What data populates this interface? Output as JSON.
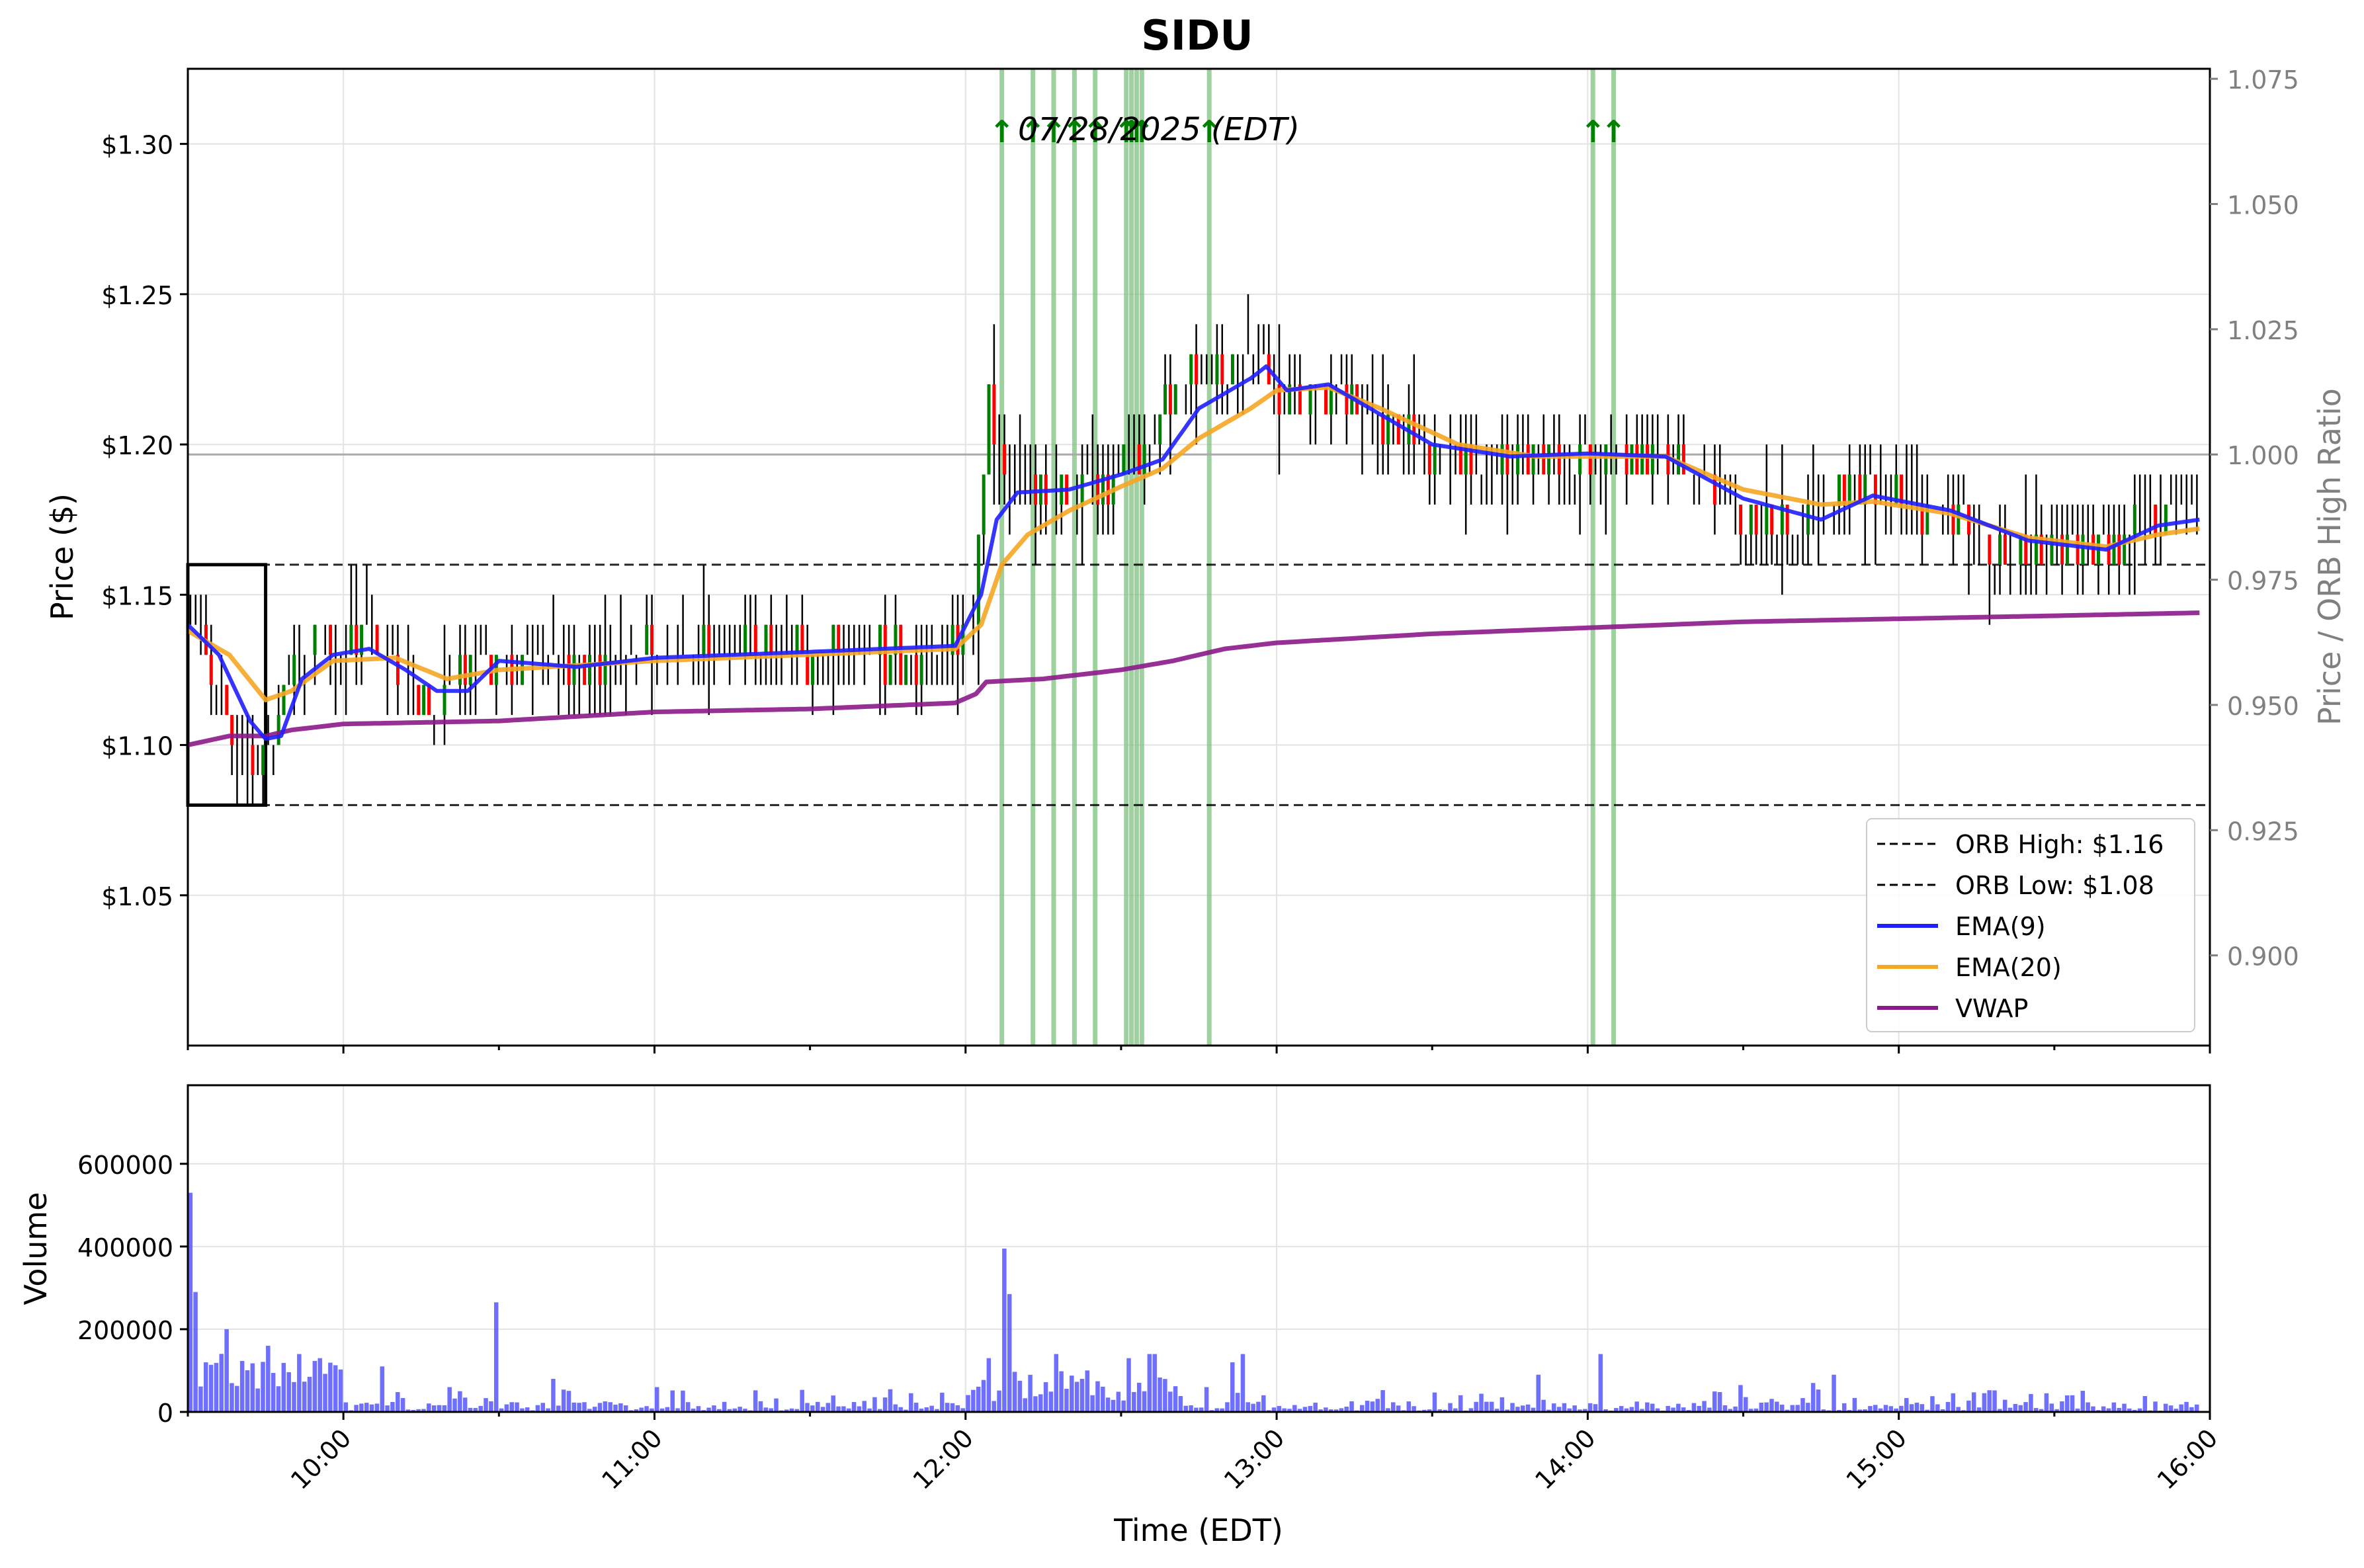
{
  "chart_data": [
    {
      "type": "candlestick",
      "title": "SIDU",
      "annotation": "07/28/2025 (EDT)",
      "ylabel": "Price ($)",
      "y2label": "Price / ORB High Ratio",
      "ylim": [
        1.0,
        1.325
      ],
      "y2lim": [
        0.882,
        1.077
      ],
      "x_range": [
        "09:30",
        "16:00"
      ],
      "x_ticks": [
        "10:00",
        "11:00",
        "12:00",
        "13:00",
        "14:00",
        "15:00",
        "16:00"
      ],
      "y_ticks": [
        {
          "value": 1.05,
          "label": "$1.05"
        },
        {
          "value": 1.1,
          "label": "$1.10"
        },
        {
          "value": 1.15,
          "label": "$1.15"
        },
        {
          "value": 1.2,
          "label": "$1.20"
        },
        {
          "value": 1.25,
          "label": "$1.25"
        },
        {
          "value": 1.3,
          "label": "$1.30"
        }
      ],
      "y2_ticks": [
        {
          "value": 0.9,
          "label": "0.900"
        },
        {
          "value": 0.925,
          "label": "0.925"
        },
        {
          "value": 0.95,
          "label": "0.950"
        },
        {
          "value": 0.975,
          "label": "0.975"
        },
        {
          "value": 1.0,
          "label": "1.000"
        },
        {
          "value": 1.025,
          "label": "1.025"
        },
        {
          "value": 1.05,
          "label": "1.050"
        },
        {
          "value": 1.075,
          "label": "1.075"
        }
      ],
      "grid": true,
      "legend": {
        "placement": "lower right",
        "entries": [
          {
            "label": "ORB High: $1.16",
            "style": "dashed",
            "color": "#000000"
          },
          {
            "label": "ORB Low: $1.08",
            "style": "dashed",
            "color": "#000000"
          },
          {
            "label": "EMA(9)",
            "style": "solid",
            "color": "#1f1fff"
          },
          {
            "label": "EMA(20)",
            "style": "solid",
            "color": "#f5a623"
          },
          {
            "label": "VWAP",
            "style": "solid",
            "color": "#8b1a89"
          }
        ]
      },
      "orb": {
        "high": 1.16,
        "low": 1.08,
        "start": "09:30",
        "end": "09:45"
      },
      "ratio_reference": 1.0,
      "signal_times": [
        "12:07",
        "12:13",
        "12:17",
        "12:21",
        "12:25",
        "12:31",
        "12:32",
        "12:33",
        "12:34",
        "12:47",
        "14:01",
        "14:05"
      ],
      "signal_marker": "↑",
      "colors": {
        "up": "#008000",
        "down": "#ff0000",
        "wick": "#000000",
        "signal": "#7cc27c"
      },
      "price_keyframes": [
        [
          "09:30",
          1.14
        ],
        [
          "09:33",
          1.135
        ],
        [
          "09:38",
          1.1
        ],
        [
          "09:42",
          1.095
        ],
        [
          "09:46",
          1.105
        ],
        [
          "09:50",
          1.13
        ],
        [
          "09:55",
          1.135
        ],
        [
          "10:00",
          1.13
        ],
        [
          "10:06",
          1.135
        ],
        [
          "10:12",
          1.118
        ],
        [
          "10:18",
          1.115
        ],
        [
          "10:22",
          1.125
        ],
        [
          "10:27",
          1.13
        ],
        [
          "10:35",
          1.125
        ],
        [
          "10:45",
          1.128
        ],
        [
          "11:00",
          1.13
        ],
        [
          "11:15",
          1.133
        ],
        [
          "11:30",
          1.13
        ],
        [
          "11:55",
          1.13
        ],
        [
          "12:01",
          1.145
        ],
        [
          "12:04",
          1.215
        ],
        [
          "12:08",
          1.185
        ],
        [
          "12:15",
          1.185
        ],
        [
          "12:25",
          1.185
        ],
        [
          "12:35",
          1.2
        ],
        [
          "12:40",
          1.22
        ],
        [
          "12:50",
          1.225
        ],
        [
          "12:55",
          1.23
        ],
        [
          "13:00",
          1.215
        ],
        [
          "13:10",
          1.22
        ],
        [
          "13:20",
          1.205
        ],
        [
          "13:30",
          1.195
        ],
        [
          "13:45",
          1.195
        ],
        [
          "14:00",
          1.195
        ],
        [
          "14:15",
          1.195
        ],
        [
          "14:25",
          1.18
        ],
        [
          "14:40",
          1.175
        ],
        [
          "14:50",
          1.185
        ],
        [
          "15:00",
          1.18
        ],
        [
          "15:10",
          1.175
        ],
        [
          "15:20",
          1.165
        ],
        [
          "15:35",
          1.165
        ],
        [
          "15:42",
          1.165
        ],
        [
          "15:47",
          1.175
        ],
        [
          "15:55",
          1.175
        ]
      ],
      "ema9_keyframes": [
        [
          "09:30",
          1.14
        ],
        [
          "09:36",
          1.13
        ],
        [
          "09:42",
          1.108
        ],
        [
          "09:45",
          1.102
        ],
        [
          "09:48",
          1.103
        ],
        [
          "09:52",
          1.122
        ],
        [
          "09:58",
          1.13
        ],
        [
          "10:05",
          1.132
        ],
        [
          "10:12",
          1.125
        ],
        [
          "10:18",
          1.118
        ],
        [
          "10:24",
          1.118
        ],
        [
          "10:30",
          1.128
        ],
        [
          "10:45",
          1.126
        ],
        [
          "11:00",
          1.129
        ],
        [
          "11:30",
          1.131
        ],
        [
          "11:58",
          1.133
        ],
        [
          "12:03",
          1.15
        ],
        [
          "12:06",
          1.175
        ],
        [
          "12:10",
          1.184
        ],
        [
          "12:20",
          1.185
        ],
        [
          "12:30",
          1.19
        ],
        [
          "12:38",
          1.195
        ],
        [
          "12:45",
          1.212
        ],
        [
          "12:55",
          1.222
        ],
        [
          "12:58",
          1.226
        ],
        [
          "13:02",
          1.218
        ],
        [
          "13:10",
          1.22
        ],
        [
          "13:20",
          1.21
        ],
        [
          "13:30",
          1.2
        ],
        [
          "13:45",
          1.196
        ],
        [
          "14:00",
          1.197
        ],
        [
          "14:15",
          1.196
        ],
        [
          "14:30",
          1.182
        ],
        [
          "14:45",
          1.175
        ],
        [
          "14:55",
          1.183
        ],
        [
          "15:10",
          1.178
        ],
        [
          "15:25",
          1.168
        ],
        [
          "15:40",
          1.165
        ],
        [
          "15:50",
          1.173
        ],
        [
          "15:58",
          1.175
        ]
      ],
      "ema20_keyframes": [
        [
          "09:30",
          1.138
        ],
        [
          "09:38",
          1.13
        ],
        [
          "09:45",
          1.115
        ],
        [
          "09:50",
          1.118
        ],
        [
          "09:58",
          1.128
        ],
        [
          "10:10",
          1.129
        ],
        [
          "10:20",
          1.122
        ],
        [
          "10:30",
          1.125
        ],
        [
          "11:00",
          1.128
        ],
        [
          "11:58",
          1.132
        ],
        [
          "12:03",
          1.14
        ],
        [
          "12:07",
          1.16
        ],
        [
          "12:12",
          1.17
        ],
        [
          "12:20",
          1.178
        ],
        [
          "12:30",
          1.186
        ],
        [
          "12:38",
          1.192
        ],
        [
          "12:45",
          1.202
        ],
        [
          "12:55",
          1.212
        ],
        [
          "13:00",
          1.218
        ],
        [
          "13:10",
          1.219
        ],
        [
          "13:20",
          1.212
        ],
        [
          "13:35",
          1.2
        ],
        [
          "13:50",
          1.196
        ],
        [
          "14:00",
          1.196
        ],
        [
          "14:15",
          1.196
        ],
        [
          "14:30",
          1.185
        ],
        [
          "14:45",
          1.18
        ],
        [
          "14:55",
          1.181
        ],
        [
          "15:10",
          1.177
        ],
        [
          "15:25",
          1.169
        ],
        [
          "15:40",
          1.166
        ],
        [
          "15:50",
          1.17
        ],
        [
          "15:58",
          1.172
        ]
      ],
      "vwap_keyframes": [
        [
          "09:30",
          1.1
        ],
        [
          "09:38",
          1.103
        ],
        [
          "09:45",
          1.103
        ],
        [
          "09:50",
          1.105
        ],
        [
          "10:00",
          1.107
        ],
        [
          "10:30",
          1.108
        ],
        [
          "11:00",
          1.111
        ],
        [
          "11:30",
          1.112
        ],
        [
          "11:58",
          1.114
        ],
        [
          "12:02",
          1.117
        ],
        [
          "12:04",
          1.121
        ],
        [
          "12:15",
          1.122
        ],
        [
          "12:30",
          1.125
        ],
        [
          "12:40",
          1.128
        ],
        [
          "12:50",
          1.132
        ],
        [
          "13:00",
          1.134
        ],
        [
          "13:30",
          1.137
        ],
        [
          "14:00",
          1.139
        ],
        [
          "14:30",
          1.141
        ],
        [
          "15:00",
          1.142
        ],
        [
          "15:30",
          1.143
        ],
        [
          "15:58",
          1.144
        ]
      ]
    },
    {
      "type": "bar",
      "ylabel": "Volume",
      "xlabel": "Time (EDT)",
      "ylim": [
        0,
        790000
      ],
      "y_ticks": [
        {
          "value": 0,
          "label": "0"
        },
        {
          "value": 200000,
          "label": "200000"
        },
        {
          "value": 400000,
          "label": "400000"
        },
        {
          "value": 600000,
          "label": "600000"
        }
      ],
      "x_ticks": [
        "10:00",
        "11:00",
        "12:00",
        "13:00",
        "14:00",
        "15:00",
        "16:00"
      ],
      "bar_color": "#5555ff",
      "grid": true,
      "volume_spikes": [
        [
          "09:30",
          530000
        ],
        [
          "09:31",
          290000
        ],
        [
          "09:37",
          200000
        ],
        [
          "09:45",
          160000
        ],
        [
          "09:51",
          140000
        ],
        [
          "09:55",
          130000
        ],
        [
          "10:07",
          110000
        ],
        [
          "10:20",
          60000
        ],
        [
          "10:29",
          265000
        ],
        [
          "10:40",
          80000
        ],
        [
          "11:00",
          60000
        ],
        [
          "12:04",
          130000
        ],
        [
          "12:07",
          395000
        ],
        [
          "12:08",
          285000
        ],
        [
          "12:17",
          140000
        ],
        [
          "12:22",
          80000
        ],
        [
          "12:31",
          130000
        ],
        [
          "12:35",
          140000
        ],
        [
          "12:36",
          140000
        ],
        [
          "12:51",
          120000
        ],
        [
          "12:53",
          140000
        ],
        [
          "12:46",
          60000
        ],
        [
          "13:50",
          90000
        ],
        [
          "14:02",
          140000
        ],
        [
          "14:29",
          65000
        ],
        [
          "14:43",
          70000
        ],
        [
          "14:47",
          90000
        ],
        [
          "15:32",
          40000
        ]
      ]
    }
  ]
}
